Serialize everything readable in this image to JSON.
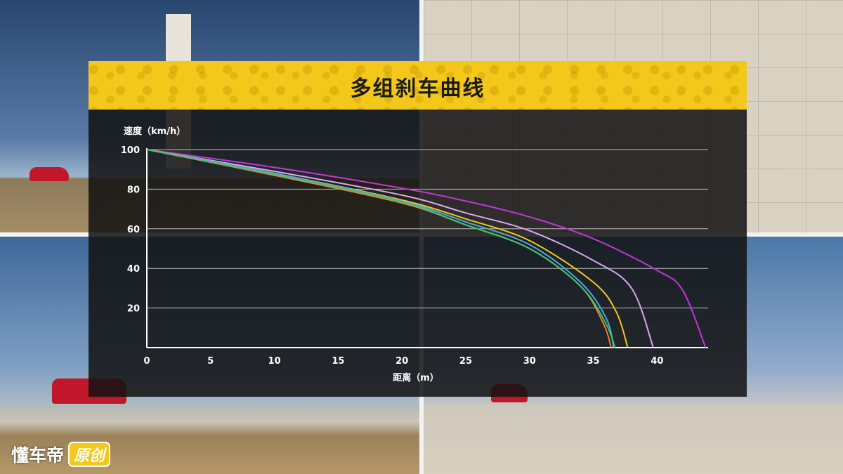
{
  "title": "多组刹车曲线",
  "logo": {
    "main": "懂车帝",
    "badge": "原创"
  },
  "chart_data": {
    "type": "line",
    "title": "多组刹车曲线",
    "xlabel": "距离（m）",
    "ylabel": "速度（km/h）",
    "xlim": [
      0,
      44
    ],
    "ylim": [
      0,
      100
    ],
    "xticks": [
      0,
      5,
      10,
      15,
      20,
      25,
      30,
      35,
      40
    ],
    "yticks": [
      20,
      40,
      60,
      80,
      100
    ],
    "grid": "horizontal",
    "legend": "none",
    "series": [
      {
        "color": "#c236d6",
        "stop_distance": 43.8,
        "points": [
          [
            0,
            100
          ],
          [
            10,
            91
          ],
          [
            20,
            80.5
          ],
          [
            25,
            74
          ],
          [
            30,
            66
          ],
          [
            35,
            55
          ],
          [
            40,
            39
          ],
          [
            42,
            29
          ],
          [
            43.8,
            0
          ]
        ]
      },
      {
        "color": "#d9a6f0",
        "stop_distance": 39.7,
        "points": [
          [
            0,
            100
          ],
          [
            10,
            89
          ],
          [
            20,
            77
          ],
          [
            25,
            68
          ],
          [
            30,
            59
          ],
          [
            35,
            44
          ],
          [
            38,
            30
          ],
          [
            39.7,
            0
          ]
        ]
      },
      {
        "color": "#f5c61a",
        "stop_distance": 37.7,
        "points": [
          [
            0,
            100
          ],
          [
            10,
            88
          ],
          [
            20,
            74.5
          ],
          [
            25,
            65
          ],
          [
            30,
            54
          ],
          [
            35,
            33
          ],
          [
            36.8,
            18
          ],
          [
            37.7,
            0
          ]
        ]
      },
      {
        "color": "#4aa8e6",
        "stop_distance": 36.6,
        "points": [
          [
            0,
            100
          ],
          [
            10,
            88
          ],
          [
            20,
            74
          ],
          [
            25,
            63.5
          ],
          [
            30,
            52
          ],
          [
            34,
            33
          ],
          [
            36,
            15
          ],
          [
            36.6,
            0
          ]
        ]
      },
      {
        "color": "#f07a3c",
        "stop_distance": 36.4,
        "points": [
          [
            0,
            100
          ],
          [
            10,
            87
          ],
          [
            20,
            73
          ],
          [
            25,
            62
          ],
          [
            30,
            50
          ],
          [
            34,
            31
          ],
          [
            35.8,
            12
          ],
          [
            36.4,
            0
          ]
        ]
      },
      {
        "color": "#3fc46a",
        "stop_distance": 36.7,
        "points": [
          [
            0,
            100
          ],
          [
            10,
            87.5
          ],
          [
            20,
            73.5
          ],
          [
            25,
            62
          ],
          [
            30,
            50
          ],
          [
            34,
            31
          ],
          [
            36,
            12
          ],
          [
            36.7,
            0
          ]
        ]
      }
    ]
  }
}
